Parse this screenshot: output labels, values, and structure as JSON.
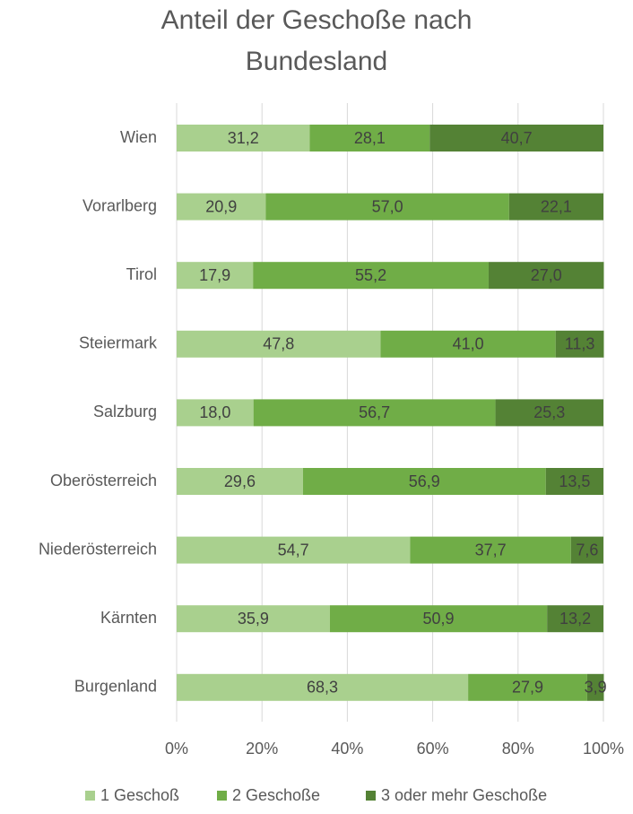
{
  "chart_data": {
    "type": "stacked_bar_horizontal",
    "title": "Anteil der Geschoße nach Bundesland",
    "categories": [
      "Wien",
      "Vorarlberg",
      "Tirol",
      "Steiermark",
      "Salzburg",
      "Oberösterreich",
      "Niederösterreich",
      "Kärnten",
      "Burgenland"
    ],
    "series": [
      {
        "name": "1 Geschoß",
        "color": "#a9d08e",
        "values": [
          31.2,
          20.9,
          17.9,
          47.8,
          18.0,
          29.6,
          54.7,
          35.9,
          68.3
        ],
        "value_labels": [
          "31,2",
          "20,9",
          "17,9",
          "47,8",
          "18,0",
          "29,6",
          "54,7",
          "35,9",
          "68,3"
        ]
      },
      {
        "name": "2 Geschoße",
        "color": "#70ad47",
        "values": [
          28.1,
          57.0,
          55.2,
          41.0,
          56.7,
          56.9,
          37.7,
          50.9,
          27.9
        ],
        "value_labels": [
          "28,1",
          "57,0",
          "55,2",
          "41,0",
          "56,7",
          "56,9",
          "37,7",
          "50,9",
          "27,9"
        ]
      },
      {
        "name": "3 oder mehr Geschoße",
        "color": "#548235",
        "values": [
          40.7,
          22.1,
          27.0,
          11.3,
          25.3,
          13.5,
          7.6,
          13.2,
          3.9
        ],
        "value_labels": [
          "40,7",
          "22,1",
          "27,0",
          "11,3",
          "25,3",
          "13,5",
          "7,6",
          "13,2",
          "3,9"
        ]
      }
    ],
    "xlim": [
      0,
      100
    ],
    "xticks": [
      {
        "value": 0,
        "label": "0%"
      },
      {
        "value": 20,
        "label": "20%"
      },
      {
        "value": 40,
        "label": "40%"
      },
      {
        "value": 60,
        "label": "60%"
      },
      {
        "value": 80,
        "label": "80%"
      },
      {
        "value": 100,
        "label": "100%"
      }
    ],
    "grid": true,
    "legend": "bottom"
  }
}
